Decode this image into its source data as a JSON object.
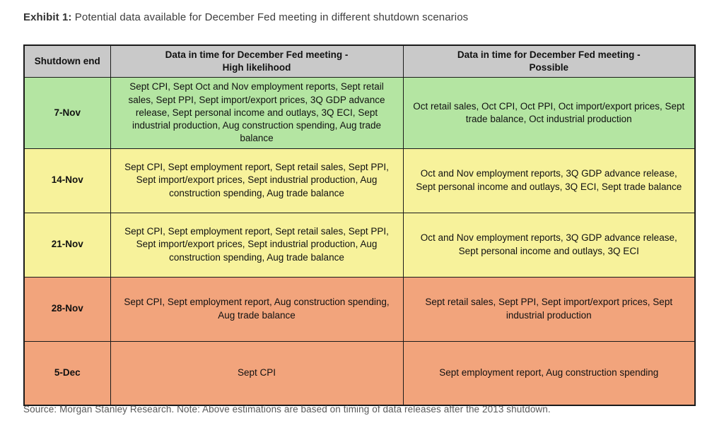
{
  "title": {
    "prefix": "Exhibit 1:",
    "text": " Potential data available for December Fed meeting in different shutdown scenarios"
  },
  "colors": {
    "header_gray": "#c9c9c9",
    "green": "#b4e5a2",
    "yellow": "#f7f29b",
    "orange": "#f2a47c"
  },
  "table": {
    "columns": {
      "date": {
        "label": "Shutdown end"
      },
      "high": {
        "line1": "Data in time for December Fed meeting -",
        "line2": "High likelihood"
      },
      "possible": {
        "line1": "Data in time for December Fed meeting -",
        "line2": "Possible"
      }
    },
    "rows": [
      {
        "date": "7-Nov",
        "color": "green",
        "high": "Sept CPI, Sept Oct and Nov employment reports, Sept retail sales, Sept PPI, Sept import/export prices, 3Q GDP advance release, Sept personal income and outlays, 3Q ECI, Sept industrial production, Aug construction spending, Aug trade balance",
        "possible": "Oct retail sales, Oct CPI, Oct PPI, Oct import/export prices, Sept trade balance, Oct industrial production"
      },
      {
        "date": "14-Nov",
        "color": "yellow",
        "high": "Sept CPI, Sept employment report, Sept retail sales, Sept PPI, Sept import/export prices, Sept industrial production, Aug construction spending, Aug trade balance",
        "possible": "Oct and Nov employment reports, 3Q GDP advance release, Sept personal income and outlays, 3Q ECI, Sept trade balance"
      },
      {
        "date": "21-Nov",
        "color": "yellow",
        "high": "Sept CPI, Sept employment report, Sept retail sales, Sept PPI, Sept import/export prices, Sept industrial production, Aug construction spending, Aug trade balance",
        "possible": "Oct and Nov employment reports, 3Q GDP advance release, Sept personal income and outlays, 3Q ECI"
      },
      {
        "date": "28-Nov",
        "color": "orange",
        "high": "Sept CPI, Sept employment report, Aug construction spending, Aug trade balance",
        "possible": "Sept retail sales, Sept PPI, Sept import/export prices, Sept industrial production"
      },
      {
        "date": "5-Dec",
        "color": "orange",
        "high": "Sept CPI",
        "possible": "Sept employment report, Aug construction spending"
      }
    ]
  },
  "source": "Source: Morgan Stanley Research. Note: Above estimations are based on timing of data releases after the 2013 shutdown."
}
